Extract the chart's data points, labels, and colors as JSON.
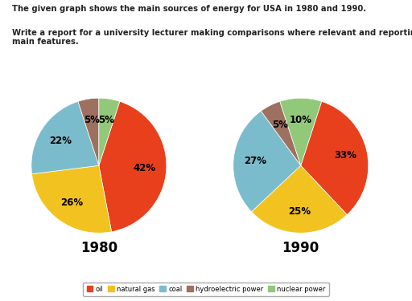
{
  "title_line1": "The given graph shows the main sources of energy for USA in 1980 and 1990.",
  "title_line2": "Write a report for a university lecturer making comparisons where relevant and reporting the\nmain features.",
  "categories": [
    "oil",
    "natural gas",
    "coal",
    "hydroelectric power",
    "nuclear power"
  ],
  "colors": [
    "#e8401c",
    "#f2c320",
    "#7bbccc",
    "#9e7060",
    "#92c87a"
  ],
  "data_1980": [
    42,
    26,
    22,
    5,
    5
  ],
  "data_1990": [
    33,
    25,
    27,
    5,
    10
  ],
  "year_1980": "1980",
  "year_1990": "1990",
  "background_color": "#ffffff"
}
